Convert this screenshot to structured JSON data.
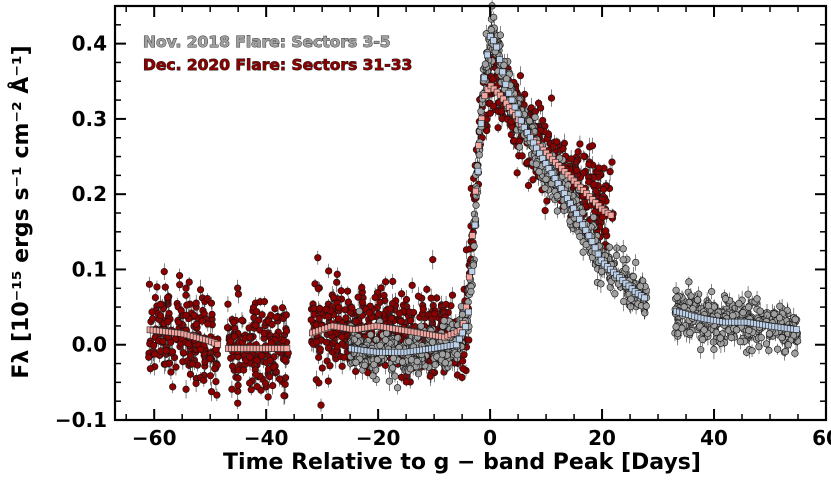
{
  "chart_data": {
    "type": "scatter",
    "xlabel": "Time Relative to g − band Peak [Days]",
    "ylabel": "Fλ [10⁻¹⁵ ergs s⁻¹ cm⁻² Å⁻¹]",
    "xlim": [
      -67,
      60
    ],
    "ylim": [
      -0.1,
      0.45
    ],
    "xticks": [
      -60,
      -40,
      -20,
      0,
      20,
      40,
      60
    ],
    "yticks": [
      -0.1,
      0.0,
      0.1,
      0.2,
      0.3,
      0.4
    ],
    "xtick_labels": [
      "−60",
      "−40",
      "−20",
      "0",
      "20",
      "40",
      "60"
    ],
    "ytick_labels": [
      "−0.1",
      "0.0",
      "0.1",
      "0.2",
      "0.3",
      "0.4"
    ],
    "grid": false,
    "legend_position": "top-left",
    "series": [
      {
        "name": "Nov. 2018 Flare: Sectors 3-5",
        "color": "#a0a0a0",
        "binned_color": "#bcd0ea",
        "raw_scatter": 0.015,
        "segments": [
          [
            -25,
            -3.5
          ],
          [
            -3.5,
            28
          ],
          [
            33,
            55
          ]
        ],
        "curve": [
          [
            -25,
            -0.005
          ],
          [
            -20,
            -0.01
          ],
          [
            -15,
            -0.01
          ],
          [
            -10,
            -0.005
          ],
          [
            -6,
            0.0
          ],
          [
            -4,
            0.03
          ],
          [
            -3,
            0.12
          ],
          [
            -2,
            0.25
          ],
          [
            -1,
            0.36
          ],
          [
            0,
            0.41
          ],
          [
            1,
            0.4
          ],
          [
            3,
            0.34
          ],
          [
            6,
            0.29
          ],
          [
            10,
            0.24
          ],
          [
            15,
            0.18
          ],
          [
            18,
            0.14
          ],
          [
            20,
            0.11
          ],
          [
            23,
            0.09
          ],
          [
            26,
            0.07
          ],
          [
            28,
            0.06
          ],
          [
            33,
            0.045
          ],
          [
            38,
            0.035
          ],
          [
            42,
            0.03
          ],
          [
            46,
            0.03
          ],
          [
            50,
            0.025
          ],
          [
            55,
            0.02
          ]
        ]
      },
      {
        "name": "Dec. 2020 Flare: Sectors 31-33",
        "color": "#8b0000",
        "binned_color": "#f4a6a0",
        "raw_scatter": 0.03,
        "segments": [
          [
            -61,
            -48.5
          ],
          [
            -47,
            -36
          ],
          [
            -32,
            22
          ]
        ],
        "curve": [
          [
            -61,
            0.02
          ],
          [
            -55,
            0.015
          ],
          [
            -50,
            0.005
          ],
          [
            -48.5,
            0.0
          ],
          [
            -47,
            -0.005
          ],
          [
            -42,
            -0.005
          ],
          [
            -38,
            -0.005
          ],
          [
            -36,
            -0.005
          ],
          [
            -32,
            0.015
          ],
          [
            -28,
            0.025
          ],
          [
            -24,
            0.02
          ],
          [
            -20,
            0.025
          ],
          [
            -16,
            0.02
          ],
          [
            -12,
            0.015
          ],
          [
            -8,
            0.01
          ],
          [
            -5,
            0.02
          ],
          [
            -4,
            0.06
          ],
          [
            -3,
            0.16
          ],
          [
            -2,
            0.27
          ],
          [
            -1,
            0.33
          ],
          [
            0,
            0.345
          ],
          [
            2,
            0.33
          ],
          [
            5,
            0.3
          ],
          [
            8,
            0.27
          ],
          [
            12,
            0.24
          ],
          [
            16,
            0.21
          ],
          [
            20,
            0.18
          ],
          [
            22,
            0.17
          ]
        ]
      }
    ]
  }
}
